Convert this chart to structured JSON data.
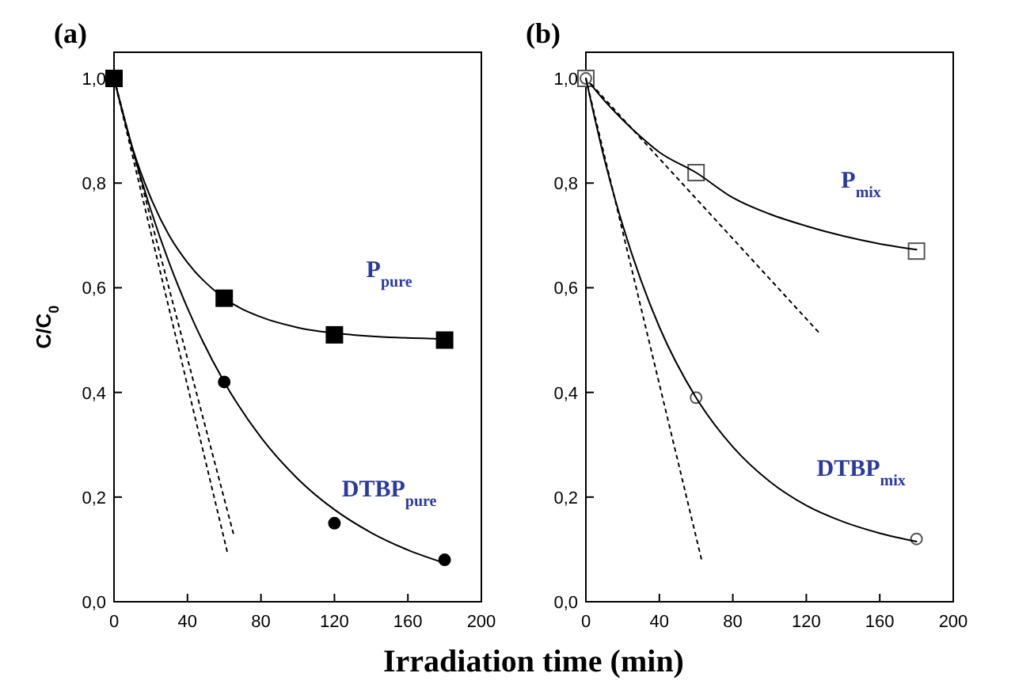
{
  "chart_data": [
    {
      "type": "scatter",
      "title": "(a)",
      "xlabel": "Irradiation time (min)",
      "ylabel": "C/C$_{0}$",
      "xlim": [
        0,
        200
      ],
      "xticks": [
        0,
        40,
        80,
        120,
        160,
        200
      ],
      "ylim": [
        0,
        1.05
      ],
      "yticks": [
        {
          "value": 0,
          "label": "0,0"
        },
        {
          "value": 0.2,
          "label": "0,2"
        },
        {
          "value": 0.4,
          "label": "0,4"
        },
        {
          "value": 0.6,
          "label": "0,6"
        },
        {
          "value": 0.8,
          "label": "0,8"
        },
        {
          "value": 1,
          "label": "1,0"
        }
      ],
      "grid": false,
      "series": [
        {
          "name": "P$_{pure}$",
          "marker": "square",
          "color": "#000000",
          "x": [
            0,
            60,
            120,
            180
          ],
          "values": [
            1.0,
            0.58,
            0.51,
            0.5
          ]
        },
        {
          "type": "line",
          "line_style": "solid",
          "color": "#000000",
          "x": [
            0,
            10,
            20,
            30,
            40,
            60,
            80,
            100,
            130,
            180
          ],
          "values": [
            1.0,
            0.868,
            0.772,
            0.7,
            0.648,
            0.58,
            0.544,
            0.524,
            0.51,
            0.502
          ]
        },
        {
          "type": "line",
          "line_style": "dotted",
          "color": "#000000",
          "x": [
            0,
            65
          ],
          "values": [
            1.0,
            0.13
          ]
        },
        {
          "name": "DTBP$_{pure}$",
          "marker": "circle",
          "color": "#000000",
          "x": [
            60,
            120,
            180
          ],
          "values": [
            0.42,
            0.15,
            0.08
          ]
        },
        {
          "type": "line",
          "line_style": "solid",
          "color": "#000000",
          "x": [
            0,
            10,
            20,
            30,
            40,
            60,
            80,
            100,
            120,
            140,
            160,
            180
          ],
          "values": [
            1.0,
            0.866,
            0.749,
            0.648,
            0.561,
            0.42,
            0.314,
            0.235,
            0.176,
            0.132,
            0.099,
            0.074
          ]
        },
        {
          "type": "line",
          "line_style": "dotted",
          "color": "#000000",
          "x": [
            0,
            62
          ],
          "values": [
            1.0,
            0.09
          ]
        }
      ]
    },
    {
      "type": "scatter",
      "title": "(b)",
      "xlim": [
        0,
        200
      ],
      "xticks": [
        0,
        40,
        80,
        120,
        160,
        200
      ],
      "ylim": [
        0,
        1.05
      ],
      "yticks": [
        {
          "value": 0,
          "label": "0,0"
        },
        {
          "value": 0.2,
          "label": "0,2"
        },
        {
          "value": 0.4,
          "label": "0,4"
        },
        {
          "value": 0.6,
          "label": "0,6"
        },
        {
          "value": 0.8,
          "label": "0,8"
        },
        {
          "value": 1,
          "label": "1,0"
        }
      ],
      "grid": false,
      "series": [
        {
          "name": "P$_{mix}$",
          "marker": "square",
          "color": "#555555",
          "x": [
            0,
            60,
            180
          ],
          "values": [
            1.0,
            0.82,
            0.67
          ]
        },
        {
          "type": "line",
          "line_style": "solid",
          "color": "#000000",
          "x": [
            0,
            10,
            20,
            30,
            40,
            60,
            80,
            100,
            120,
            140,
            160,
            180
          ],
          "values": [
            1.0,
            0.958,
            0.921,
            0.888,
            0.859,
            0.82,
            0.772,
            0.741,
            0.718,
            0.699,
            0.684,
            0.673
          ]
        },
        {
          "type": "line",
          "line_style": "dotted",
          "color": "#000000",
          "x": [
            0,
            128
          ],
          "values": [
            1.0,
            0.51
          ]
        },
        {
          "name": "DTBP$_{mix}$",
          "marker": "circle",
          "color": "#555555",
          "x": [
            0,
            60,
            180
          ],
          "values": [
            1.0,
            0.39,
            0.12
          ]
        },
        {
          "type": "line",
          "line_style": "solid",
          "color": "#000000",
          "x": [
            0,
            10,
            20,
            30,
            40,
            60,
            80,
            100,
            120,
            140,
            160,
            180
          ],
          "values": [
            1.0,
            0.847,
            0.72,
            0.614,
            0.525,
            0.39,
            0.296,
            0.23,
            0.184,
            0.153,
            0.131,
            0.115
          ]
        },
        {
          "type": "line",
          "line_style": "dotted",
          "color": "#000000",
          "x": [
            0,
            63
          ],
          "values": [
            1.0,
            0.08
          ]
        }
      ]
    }
  ]
}
